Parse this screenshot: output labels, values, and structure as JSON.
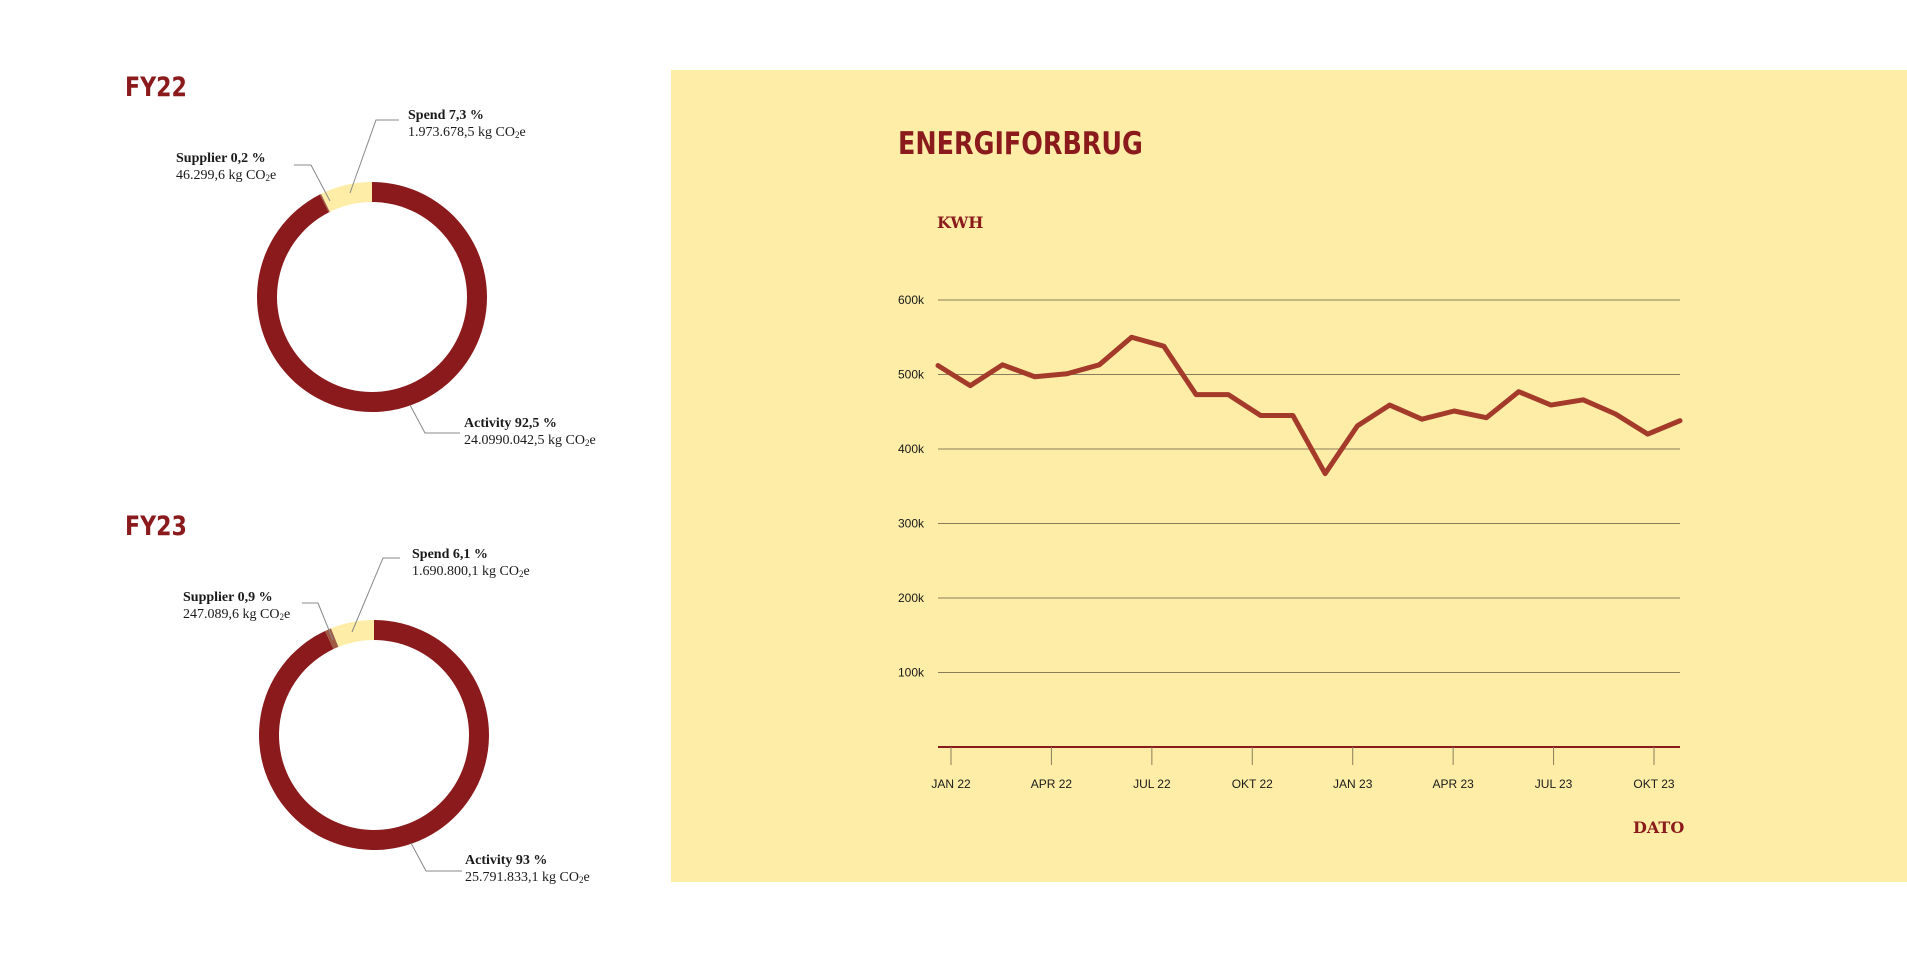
{
  "fy22": {
    "title": "FY22",
    "spend": {
      "name": "Spend 7,3 %",
      "value": "1.973.678,5 kg CO",
      "sub": "2",
      "unit_suffix": "e"
    },
    "supplier": {
      "name": "Supplier 0,2 %",
      "value": "46.299,6 kg CO",
      "sub": "2",
      "unit_suffix": "e"
    },
    "activity": {
      "name": "Activity 92,5 %",
      "value": "24.0990.042,5 kg CO",
      "sub": "2",
      "unit_suffix": "e"
    }
  },
  "fy23": {
    "title": "FY23",
    "spend": {
      "name": "Spend 6,1 %",
      "value": "1.690.800,1 kg CO",
      "sub": "2",
      "unit_suffix": "e"
    },
    "supplier": {
      "name": "Supplier 0,9 %",
      "value": "247.089,6 kg CO",
      "sub": "2",
      "unit_suffix": "e"
    },
    "activity": {
      "name": "Activity 93 %",
      "value": "25.791.833,1 kg CO",
      "sub": "2",
      "unit_suffix": "e"
    }
  },
  "energy": {
    "title": "ENERGIFORBRUG",
    "ylabel": "KWH",
    "xlabel": "DATO"
  },
  "colors": {
    "activity": "#8a1a1c",
    "spend": "#fdeda6",
    "supplier": "#a05a44",
    "line": "#a33a2a",
    "grid": "#8b7d5c",
    "axis": "#8a1a1c",
    "panel": "#fdeda6"
  },
  "chart_data": [
    {
      "type": "pie",
      "title": "FY22",
      "categories": [
        "Activity",
        "Supplier",
        "Spend"
      ],
      "values": [
        92.5,
        0.2,
        7.3
      ]
    },
    {
      "type": "pie",
      "title": "FY23",
      "categories": [
        "Activity",
        "Supplier",
        "Spend"
      ],
      "values": [
        93,
        0.9,
        6.1
      ]
    },
    {
      "type": "line",
      "title": "ENERGIFORBRUG",
      "xlabel": "DATO",
      "ylabel": "KWH",
      "x": [
        "2022-01",
        "2022-02",
        "2022-03",
        "2022-04",
        "2022-05",
        "2022-06",
        "2022-07",
        "2022-08",
        "2022-09",
        "2022-10",
        "2022-11",
        "2022-12",
        "2023-01",
        "2023-02",
        "2023-03",
        "2023-04",
        "2023-05",
        "2023-06",
        "2023-07",
        "2023-08",
        "2023-09",
        "2023-10",
        "2023-11",
        "2023-12"
      ],
      "values": [
        512000,
        485000,
        513000,
        497000,
        501000,
        513000,
        550000,
        538000,
        473000,
        473000,
        445000,
        445000,
        367000,
        431000,
        459000,
        440000,
        451000,
        442000,
        477000,
        459000,
        466000,
        447000,
        420000,
        438000
      ],
      "ylim": [
        0,
        600000
      ],
      "yticks": [
        "100k",
        "200k",
        "300k",
        "400k",
        "500k",
        "600k"
      ],
      "ytick_values": [
        100000,
        200000,
        300000,
        400000,
        500000,
        600000
      ],
      "xticks": [
        "JAN 22",
        "APR 22",
        "JUL 22",
        "OKT 22",
        "JAN 23",
        "APR 23",
        "JUL 23",
        "OKT 23"
      ],
      "xtick_index": [
        0,
        3,
        6,
        9,
        12,
        15,
        18,
        21
      ],
      "grid": true
    }
  ]
}
